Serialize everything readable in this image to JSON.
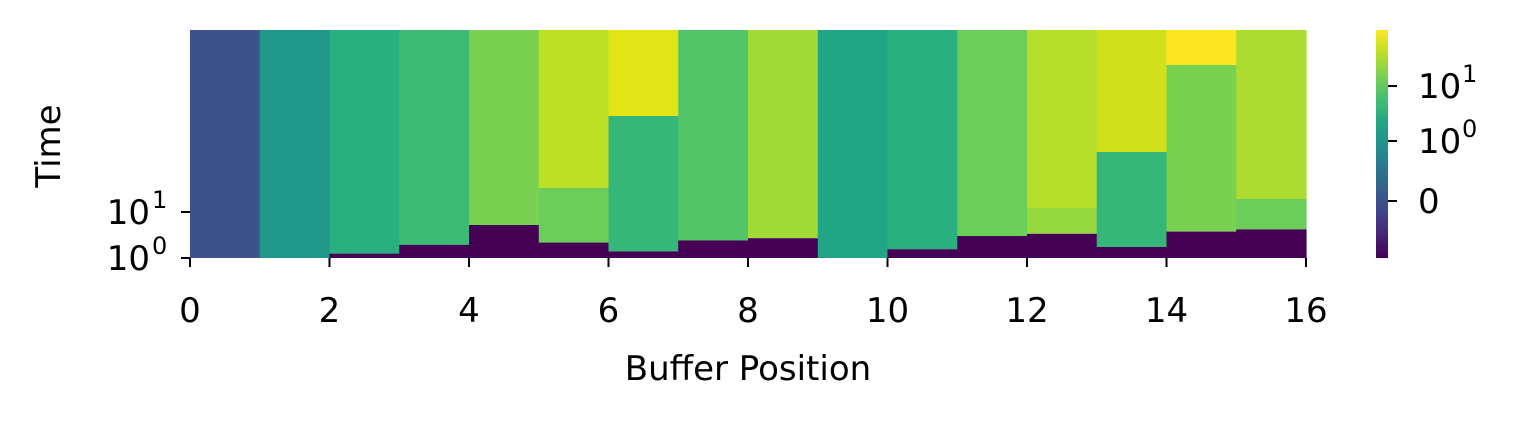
{
  "chart_data": {
    "type": "heatmap",
    "xlabel": "Buffer Position",
    "ylabel": "Time",
    "x_ticks": [
      "0",
      "2",
      "4",
      "6",
      "8",
      "10",
      "12",
      "14",
      "16"
    ],
    "y_ticks": [
      {
        "base": "10",
        "exp": "0"
      },
      {
        "base": "10",
        "exp": "1"
      }
    ],
    "colorbar_ticks": [
      {
        "base": "10",
        "exp": "1",
        "plain": ""
      },
      {
        "base": "10",
        "exp": "0",
        "plain": ""
      },
      {
        "base": "",
        "exp": "",
        "plain": "0"
      }
    ],
    "colormap": "viridis",
    "colors": {
      "dark": "#440154",
      "segments": [
        [
          "#3b528b"
        ],
        [
          "#1f988b"
        ],
        [
          "#2ab07f"
        ],
        [
          "#3bbb75"
        ],
        [
          "#7ad151"
        ],
        [
          "#6ccd5a",
          "#bddf26"
        ],
        [
          "#35b779",
          "#e2e418"
        ],
        [
          "#52c569"
        ],
        [
          "#a2da37"
        ],
        [
          "#21a585"
        ],
        [
          "#2ab07f"
        ],
        [
          "#6ccd5a"
        ],
        [
          "#95d840",
          "#b5de2b"
        ],
        [
          "#35b779",
          "#d0e11c"
        ],
        [
          "#7ad151",
          "#fde725"
        ],
        [
          "#6ccd5a",
          "#addc30"
        ]
      ]
    },
    "columns": [
      {
        "x": 0,
        "lower": 0.0,
        "mid": null,
        "top_frac": 0.0
      },
      {
        "x": 1,
        "lower": 0.0,
        "mid": null,
        "top_frac": 0.0
      },
      {
        "x": 2,
        "lower": 0.2,
        "mid": null,
        "top_frac": 0.0
      },
      {
        "x": 3,
        "lower": 0.6,
        "mid": null,
        "top_frac": 0.0
      },
      {
        "x": 4,
        "lower": 1.5,
        "mid": null,
        "top_frac": 0.0
      },
      {
        "x": 5,
        "lower": 0.7,
        "mid": 1.5,
        "top_frac": 0.0
      },
      {
        "x": 6,
        "lower": 0.3,
        "mid": 3.1,
        "top_frac": 0.0
      },
      {
        "x": 7,
        "lower": 0.8,
        "mid": null,
        "top_frac": 0.0
      },
      {
        "x": 8,
        "lower": 0.9,
        "mid": null,
        "top_frac": 0.0
      },
      {
        "x": 9,
        "lower": 0.0,
        "mid": null,
        "top_frac": 0.0
      },
      {
        "x": 10,
        "lower": 0.4,
        "mid": null,
        "top_frac": 0.0
      },
      {
        "x": 11,
        "lower": 1.0,
        "mid": null,
        "top_frac": 0.0
      },
      {
        "x": 12,
        "lower": 1.1,
        "mid": 1.3,
        "top_frac": 0.0
      },
      {
        "x": 13,
        "lower": 0.5,
        "mid": 2.4,
        "top_frac": 0.0
      },
      {
        "x": 14,
        "lower": 1.2,
        "mid": 4.2,
        "top_frac": 0.0
      },
      {
        "x": 15,
        "lower": 1.3,
        "mid": 1.3,
        "top_frac": 0.0
      }
    ],
    "xlim": [
      0,
      16
    ]
  }
}
